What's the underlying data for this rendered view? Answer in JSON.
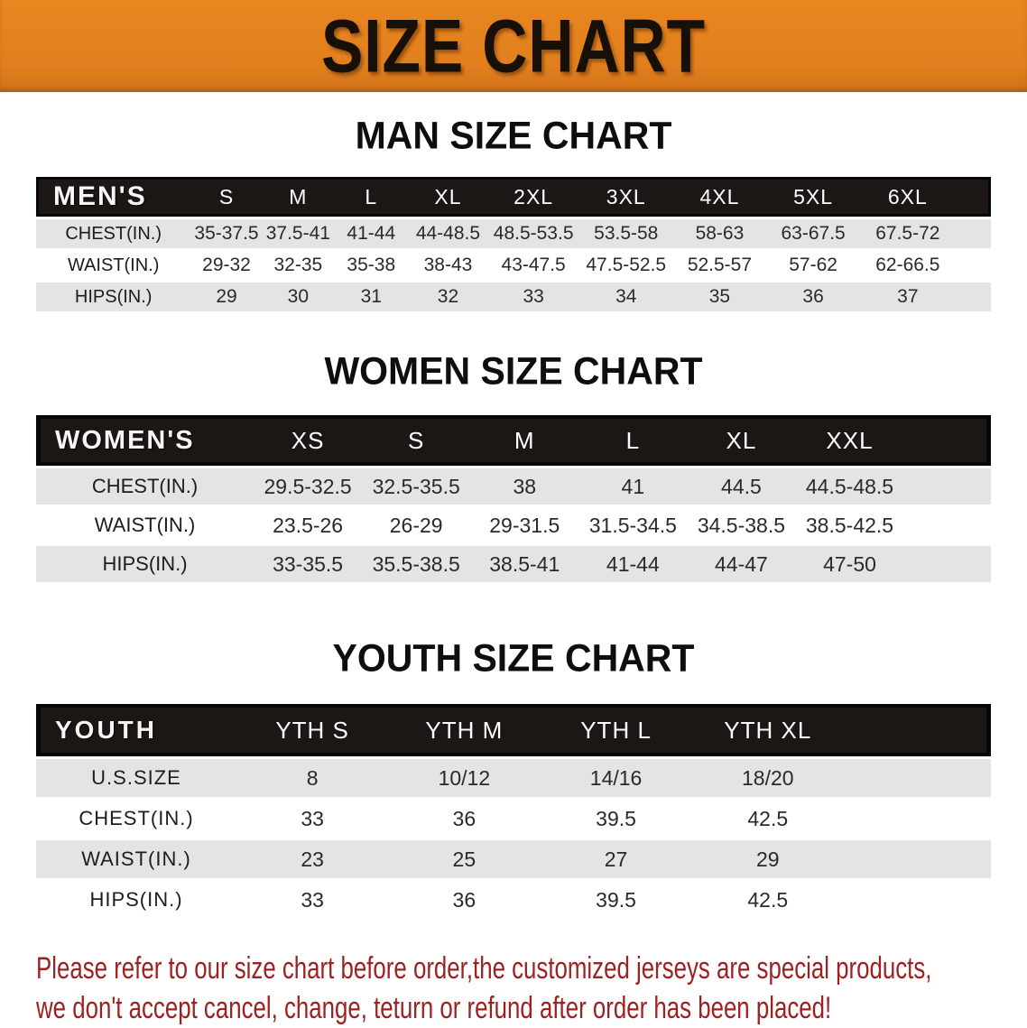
{
  "banner": {
    "title": "SIZE CHART",
    "bg_color": "#e2801e",
    "text_color": "#161009"
  },
  "sections": [
    {
      "heading": "MAN SIZE CHART",
      "table": {
        "label": "MEN'S",
        "columns": [
          "S",
          "M",
          "L",
          "XL",
          "2XL",
          "3XL",
          "4XL",
          "5XL",
          "6XL"
        ],
        "rows": [
          {
            "label": "CHEST(IN.)",
            "values": [
              "35-37.5",
              "37.5-41",
              "41-44",
              "44-48.5",
              "48.5-53.5",
              "53.5-58",
              "58-63",
              "63-67.5",
              "67.5-72"
            ]
          },
          {
            "label": "WAIST(IN.)",
            "values": [
              "29-32",
              "32-35",
              "35-38",
              "38-43",
              "43-47.5",
              "47.5-52.5",
              "52.5-57",
              "57-62",
              "62-66.5"
            ]
          },
          {
            "label": "HIPS(IN.)",
            "values": [
              "29",
              "30",
              "31",
              "32",
              "33",
              "34",
              "35",
              "36",
              "37"
            ]
          }
        ]
      }
    },
    {
      "heading": "WOMEN SIZE CHART",
      "table": {
        "label": "WOMEN'S",
        "columns": [
          "XS",
          "S",
          "M",
          "L",
          "XL",
          "XXL"
        ],
        "rows": [
          {
            "label": "CHEST(IN.)",
            "values": [
              "29.5-32.5",
              "32.5-35.5",
              "38",
              "41",
              "44.5",
              "44.5-48.5"
            ]
          },
          {
            "label": "WAIST(IN.)",
            "values": [
              "23.5-26",
              "26-29",
              "29-31.5",
              "31.5-34.5",
              "34.5-38.5",
              "38.5-42.5"
            ]
          },
          {
            "label": "HIPS(IN.)",
            "values": [
              "33-35.5",
              "35.5-38.5",
              "38.5-41",
              "41-44",
              "44-47",
              "47-50"
            ]
          }
        ]
      }
    },
    {
      "heading": "YOUTH SIZE CHART",
      "table": {
        "label": "YOUTH",
        "columns": [
          "YTH S",
          "YTH M",
          "YTH L",
          "YTH XL"
        ],
        "rows": [
          {
            "label": "U.S.SIZE",
            "values": [
              "8",
              "10/12",
              "14/16",
              "18/20"
            ]
          },
          {
            "label": "CHEST(IN.)",
            "values": [
              "33",
              "36",
              "39.5",
              "42.5"
            ]
          },
          {
            "label": "WAIST(IN.)",
            "values": [
              "23",
              "25",
              "27",
              "29"
            ]
          },
          {
            "label": "HIPS(IN.)",
            "values": [
              "33",
              "36",
              "39.5",
              "42.5"
            ]
          }
        ]
      }
    }
  ],
  "disclaimer": {
    "line1": "Please refer to our size chart before order,the customized jerseys are special products,",
    "line2": "we don't accept cancel, change, teturn or refund after order has been placed!",
    "color": "#9e2121"
  },
  "style_tokens": {
    "header_bar_color": "#1c1715",
    "stripe_row_color": "#e4e4e4"
  }
}
